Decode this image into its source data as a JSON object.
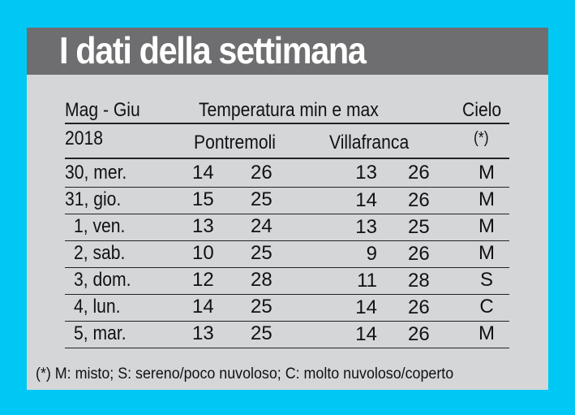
{
  "title": "I dati della settimana",
  "header": {
    "period": "Mag - Giu",
    "year": "2018",
    "temperature_label": "Temperatura min e max",
    "sky_label": "Cielo",
    "sky_note": "(*)",
    "location_1": "Pontremoli",
    "location_2": "Villafranca"
  },
  "rows": [
    {
      "day": "30, mer.",
      "p_min": "14",
      "p_max": "26",
      "v_min": "13",
      "v_max": "26",
      "sky": "M"
    },
    {
      "day": "31, gio.",
      "p_min": "15",
      "p_max": "25",
      "v_min": "14",
      "v_max": "26",
      "sky": "M"
    },
    {
      "day": "1, ven.",
      "p_min": "13",
      "p_max": "24",
      "v_min": "13",
      "v_max": "25",
      "sky": "M"
    },
    {
      "day": "2, sab.",
      "p_min": "10",
      "p_max": "25",
      "v_min": "9",
      "v_max": "26",
      "sky": "M"
    },
    {
      "day": "3, dom.",
      "p_min": "12",
      "p_max": "28",
      "v_min": "11",
      "v_max": "28",
      "sky": "S"
    },
    {
      "day": "4, lun.",
      "p_min": "14",
      "p_max": "25",
      "v_min": "14",
      "v_max": "26",
      "sky": "C"
    },
    {
      "day": "5, mar.",
      "p_min": "13",
      "p_max": "25",
      "v_min": "14",
      "v_max": "26",
      "sky": "M"
    }
  ],
  "footnote": "(*) M: misto; S: sereno/poco nuvoloso; C: molto nuvoloso/coperto",
  "colors": {
    "background": "#00c8f5",
    "card": "#d5d6d8",
    "title_bar": "#6e6e70"
  }
}
